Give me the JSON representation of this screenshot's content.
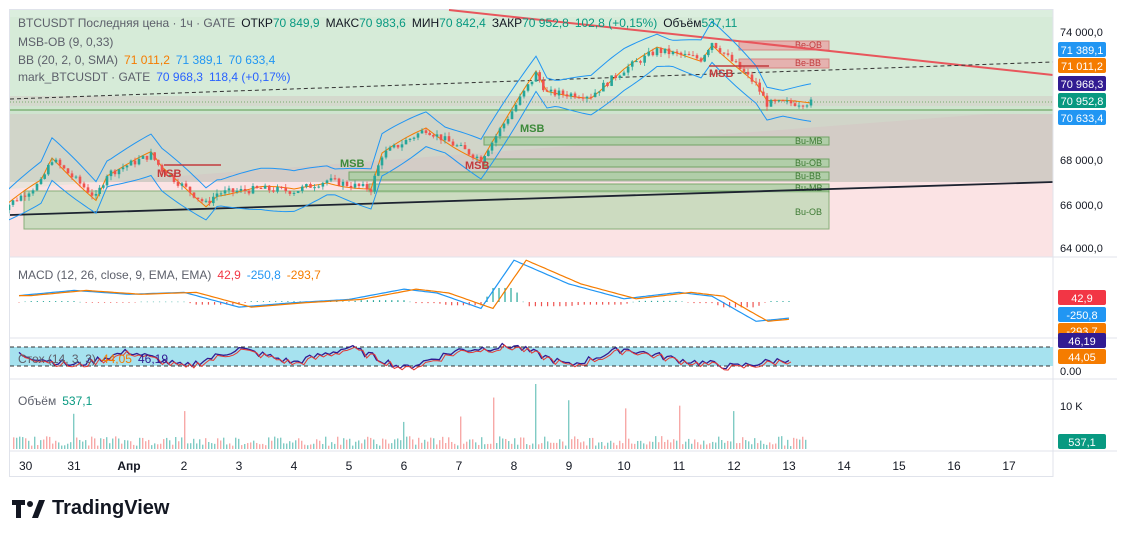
{
  "header": {
    "symbol_line": "BTCUSDT Последняя цена · 1ч · GATE",
    "open_label": "ОТКР",
    "open_value": "70 849,9",
    "high_label": "МАКС",
    "high_value": "70 983,6",
    "low_label": "МИН",
    "low_value": "70 842,4",
    "close_label": "ЗАКР",
    "close_value": "70 952,8",
    "change": "102,8 (+0,15%)",
    "volume_label": "Объём",
    "volume_value": "537,11"
  },
  "indicators": {
    "msb_ob": "MSB-OB (9, 0,33)",
    "bb_label": "BB (20, 2, 0, SMA)",
    "bb_basis": "71 011,2",
    "bb_upper": "71 389,1",
    "bb_lower": "70 633,4",
    "mark_label": "mark_BTCUSDT · GATE",
    "mark_value": "70 968,3",
    "mark_change": "118,4 (+0,17%)",
    "macd_label": "MACD (12, 26, close, 9, EMA, EMA)",
    "macd_hist": "42,9",
    "macd_line": "-250,8",
    "macd_signal": "-293,7",
    "stoch_label": "Стох (14, 3, 3)",
    "stoch_k": "44,05",
    "stoch_d": "46,19",
    "volume_label": "Объём",
    "volume_value": "537,1"
  },
  "price_axis": {
    "ticks": [
      "74 000,0",
      "68 000,0",
      "66 000,0",
      "64 000,0"
    ],
    "badges": [
      {
        "text": "71 389,1",
        "color": "#2196f3"
      },
      {
        "text": "71 011,2",
        "color": "#f57c00"
      },
      {
        "text": "70 968,3",
        "color": "#311b92"
      },
      {
        "text": "70 952,8",
        "color": "#089981"
      },
      {
        "text": "70 633,4",
        "color": "#2196f3"
      }
    ]
  },
  "macd_axis": {
    "badges": [
      {
        "text": "42,9",
        "color": "#f23645"
      },
      {
        "text": "-250,8",
        "color": "#2196f3"
      },
      {
        "text": "-293,7",
        "color": "#f57c00"
      }
    ]
  },
  "stoch_axis": {
    "badges": [
      {
        "text": "46,19",
        "color": "#311b92"
      },
      {
        "text": "44,05",
        "color": "#f57c00"
      }
    ],
    "tick": "0.00"
  },
  "volume_axis": {
    "tick": "10 K",
    "badge": {
      "text": "537,1",
      "color": "#089981"
    }
  },
  "time_axis": [
    "30",
    "31",
    "Апр",
    "2",
    "3",
    "4",
    "5",
    "6",
    "7",
    "8",
    "9",
    "10",
    "11",
    "12",
    "13",
    "14",
    "15",
    "16",
    "17"
  ],
  "zone_labels": {
    "bear": [
      "Be-OB",
      "Be-BB"
    ],
    "bull": [
      "Bu-MB",
      "Bu-OB",
      "Bu-BB",
      "Bu-MB",
      "Bu-OB"
    ],
    "msb": [
      "MSB",
      "MSB",
      "MSB",
      "MSB",
      "MSB"
    ]
  },
  "brand": "TradingView",
  "chart_data": {
    "type": "candlestick",
    "symbol": "BTCUSDT",
    "interval": "1ч",
    "price_range": [
      63800,
      75200
    ],
    "y_ticks": [
      64000,
      66000,
      68000,
      74000
    ],
    "close_path": [
      {
        "x": "30",
        "y": 65800
      },
      {
        "x": "30",
        "y": 67200
      },
      {
        "x": "31",
        "y": 68300
      },
      {
        "x": "31",
        "y": 66500
      },
      {
        "x": "Апр",
        "y": 67600
      },
      {
        "x": "Апр",
        "y": 68500
      },
      {
        "x": "2",
        "y": 67800
      },
      {
        "x": "2",
        "y": 66200
      },
      {
        "x": "3",
        "y": 66700
      },
      {
        "x": "3",
        "y": 66900
      },
      {
        "x": "4",
        "y": 66800
      },
      {
        "x": "5",
        "y": 67300
      },
      {
        "x": "5",
        "y": 66900
      },
      {
        "x": "6",
        "y": 68500
      },
      {
        "x": "6",
        "y": 69700
      },
      {
        "x": "7",
        "y": 69400
      },
      {
        "x": "7",
        "y": 68300
      },
      {
        "x": "8",
        "y": 69100
      },
      {
        "x": "8",
        "y": 72300
      },
      {
        "x": "9",
        "y": 71400
      },
      {
        "x": "9",
        "y": 71300
      },
      {
        "x": "10",
        "y": 72500
      },
      {
        "x": "11",
        "y": 73400
      },
      {
        "x": "11",
        "y": 73000
      },
      {
        "x": "12",
        "y": 73800
      },
      {
        "x": "12",
        "y": 71800
      },
      {
        "x": "13",
        "y": 70900
      },
      {
        "x": "13",
        "y": 70953
      }
    ],
    "macd_path": [
      {
        "x": "30",
        "y": 100
      },
      {
        "x": "31",
        "y": 180
      },
      {
        "x": "Апр",
        "y": 120
      },
      {
        "x": "2",
        "y": 150
      },
      {
        "x": "3",
        "y": -80
      },
      {
        "x": "4",
        "y": -10
      },
      {
        "x": "5",
        "y": 40
      },
      {
        "x": "6",
        "y": 200
      },
      {
        "x": "7",
        "y": 140
      },
      {
        "x": "7",
        "y": -100
      },
      {
        "x": "8",
        "y": 650
      },
      {
        "x": "9",
        "y": 280
      },
      {
        "x": "10",
        "y": 50
      },
      {
        "x": "11",
        "y": 150
      },
      {
        "x": "12",
        "y": 90
      },
      {
        "x": "12",
        "y": -300
      },
      {
        "x": "13",
        "y": -251
      }
    ],
    "stoch_k_path": [
      {
        "x": "30",
        "y": 60
      },
      {
        "x": "31",
        "y": 20
      },
      {
        "x": "Апр",
        "y": 70
      },
      {
        "x": "2",
        "y": 15
      },
      {
        "x": "3",
        "y": 80
      },
      {
        "x": "4",
        "y": 30
      },
      {
        "x": "5",
        "y": 85
      },
      {
        "x": "6",
        "y": 10
      },
      {
        "x": "7",
        "y": 75
      },
      {
        "x": "8",
        "y": 90
      },
      {
        "x": "9",
        "y": 20
      },
      {
        "x": "10",
        "y": 80
      },
      {
        "x": "11",
        "y": 40
      },
      {
        "x": "12",
        "y": 15
      },
      {
        "x": "13",
        "y": 44
      }
    ],
    "volume_peaks": [
      {
        "x": "31",
        "y": 6500
      },
      {
        "x": "2",
        "y": 7000
      },
      {
        "x": "6",
        "y": 5000
      },
      {
        "x": "7",
        "y": 6000
      },
      {
        "x": "8",
        "y": 9500
      },
      {
        "x": "8",
        "y": 12000
      },
      {
        "x": "9",
        "y": 9000
      },
      {
        "x": "10",
        "y": 7500
      },
      {
        "x": "11",
        "y": 8000
      },
      {
        "x": "12",
        "y": 7000
      },
      {
        "x": "13",
        "y": 537
      }
    ]
  }
}
